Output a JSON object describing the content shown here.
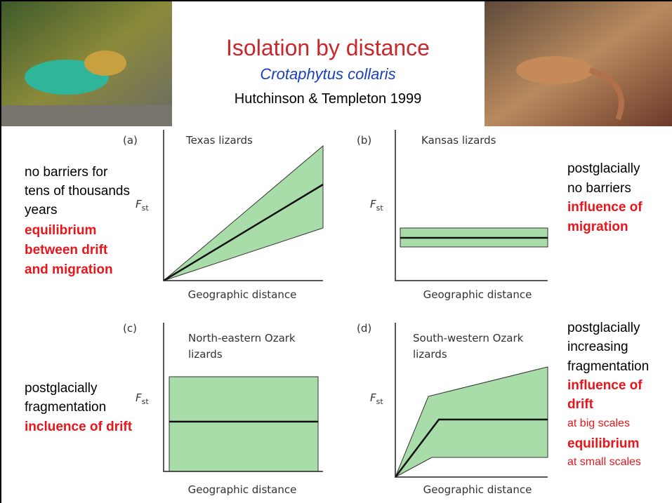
{
  "header": {
    "title": "Isolation by distance",
    "subtitle": "Crotaphytus collaris",
    "citation": "Hutchinson & Templeton 1999"
  },
  "panels": [
    {
      "label": "(a)",
      "title": [
        "Texas lizards"
      ],
      "y_label": "F",
      "y_label_sub": "st",
      "x_label": "Geographic distance"
    },
    {
      "label": "(b)",
      "title": [
        "Kansas lizards"
      ],
      "y_label": "F",
      "y_label_sub": "st",
      "x_label": "Geographic distance"
    },
    {
      "label": "(c)",
      "title": [
        "North-eastern Ozark",
        "lizards"
      ],
      "y_label": "F",
      "y_label_sub": "st",
      "x_label": "Geographic distance"
    },
    {
      "label": "(d)",
      "title": [
        "South-western Ozark",
        "lizards"
      ],
      "y_label": "F",
      "y_label_sub": "st",
      "x_label": "Geographic distance"
    }
  ],
  "notes": {
    "texas": [
      "no barriers for",
      "tens of thousands",
      "years",
      "equilibrium",
      "between drift",
      "and migration"
    ],
    "kansas": [
      "postglacially",
      "no barriers",
      "influence of",
      "migration"
    ],
    "ne_ozark": [
      "postglacially",
      "fragmentation",
      "incluence of drift"
    ],
    "sw_ozark": [
      "postglacially",
      "increasing",
      "fragmentation",
      "influence of",
      "drift",
      "at big scales",
      "equilibrium",
      "at small scales"
    ]
  }
}
